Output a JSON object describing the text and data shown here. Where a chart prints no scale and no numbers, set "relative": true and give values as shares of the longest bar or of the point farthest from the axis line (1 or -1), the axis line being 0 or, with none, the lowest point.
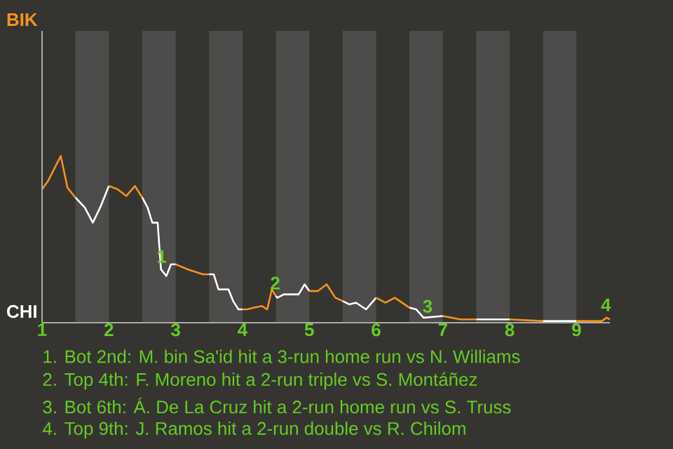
{
  "chart_data": {
    "type": "line",
    "relative": true,
    "series": [
      {
        "color": "#f7931e",
        "x": [
          1,
          1.09,
          1.28,
          1.38,
          1.5
        ],
        "values": [
          0.8,
          0.85,
          1,
          0.81,
          0.75
        ]
      },
      {
        "color": "#ffffff",
        "x": [
          1.5,
          1.64,
          1.76,
          1.88,
          2
        ],
        "values": [
          0.75,
          0.69,
          0.6,
          0.7,
          0.82
        ]
      },
      {
        "color": "#f7931e",
        "x": [
          2,
          2.13,
          2.26,
          2.39,
          2.5
        ],
        "values": [
          0.82,
          0.8,
          0.76,
          0.82,
          0.75
        ]
      },
      {
        "color": "#ffffff",
        "x": [
          2.5,
          2.58,
          2.65,
          2.73,
          2.78,
          2.86,
          2.93,
          3
        ],
        "values": [
          0.75,
          0.69,
          0.6,
          0.6,
          0.32,
          0.28,
          0.35,
          0.35
        ]
      },
      {
        "color": "#f7931e",
        "x": [
          3,
          3.18,
          3.41,
          3.5
        ],
        "values": [
          0.35,
          0.32,
          0.29,
          0.29
        ]
      },
      {
        "color": "#ffffff",
        "x": [
          3.5,
          3.57,
          3.64,
          3.72,
          3.79,
          3.86,
          3.94,
          4
        ],
        "values": [
          0.29,
          0.29,
          0.2,
          0.2,
          0.2,
          0.13,
          0.08,
          0.08
        ]
      },
      {
        "color": "#f7931e",
        "x": [
          4,
          4.07,
          4.17,
          4.29,
          4.37,
          4.44,
          4.5
        ],
        "values": [
          0.08,
          0.08,
          0.09,
          0.1,
          0.08,
          0.2,
          0.16
        ]
      },
      {
        "color": "#ffffff",
        "x": [
          4.5,
          4.52,
          4.62,
          4.84,
          4.93,
          5
        ],
        "values": [
          0.16,
          0.15,
          0.17,
          0.17,
          0.23,
          0.19
        ]
      },
      {
        "color": "#f7931e",
        "x": [
          5,
          5.13,
          5.26,
          5.39,
          5.5
        ],
        "values": [
          0.19,
          0.19,
          0.23,
          0.15,
          0.13
        ]
      },
      {
        "color": "#ffffff",
        "x": [
          5.5,
          5.6,
          5.7,
          5.85,
          6
        ],
        "values": [
          0.13,
          0.11,
          0.12,
          0.08,
          0.15
        ]
      },
      {
        "color": "#f7931e",
        "x": [
          6,
          6.14,
          6.28,
          6.5
        ],
        "values": [
          0.15,
          0.12,
          0.15,
          0.09
        ]
      },
      {
        "color": "#ffffff",
        "x": [
          6.5,
          6.6,
          6.71,
          7
        ],
        "values": [
          0.09,
          0.08,
          0.03,
          0.04
        ]
      },
      {
        "color": "#f7931e",
        "x": [
          7,
          7.26,
          7.5
        ],
        "values": [
          0.04,
          0.02,
          0.02
        ]
      },
      {
        "color": "#ffffff",
        "x": [
          7.5,
          7.69,
          8
        ],
        "values": [
          0.02,
          0.02,
          0.02
        ]
      },
      {
        "color": "#f7931e",
        "x": [
          8,
          8.5
        ],
        "values": [
          0.02,
          0.01
        ]
      },
      {
        "color": "#ffffff",
        "x": [
          8.5,
          8.69,
          9
        ],
        "values": [
          0.01,
          0.01,
          0.01
        ]
      },
      {
        "color": "#f7931e",
        "x": [
          9,
          9.38,
          9.45,
          9.5
        ],
        "values": [
          0.01,
          0.01,
          0.03,
          0.02
        ]
      }
    ],
    "xlim": [
      1,
      9.5
    ],
    "xticks": [
      1,
      2,
      3,
      4,
      5,
      6,
      7,
      8,
      9
    ],
    "bands": [
      {
        "axis": "x",
        "from": 1.5,
        "to": 2,
        "color": "#4d4c4a"
      },
      {
        "axis": "x",
        "from": 2.5,
        "to": 3,
        "color": "#4d4c4a"
      },
      {
        "axis": "x",
        "from": 3.5,
        "to": 4,
        "color": "#4d4c4a"
      },
      {
        "axis": "x",
        "from": 4.5,
        "to": 5,
        "color": "#4d4c4a"
      },
      {
        "axis": "x",
        "from": 5.5,
        "to": 6,
        "color": "#4d4c4a"
      },
      {
        "axis": "x",
        "from": 6.5,
        "to": 7,
        "color": "#4d4c4a"
      },
      {
        "axis": "x",
        "from": 7.5,
        "to": 8,
        "color": "#4d4c4a"
      },
      {
        "axis": "x",
        "from": 8.5,
        "to": 9,
        "color": "#4d4c4a"
      }
    ],
    "annotations": [
      "BIK",
      "CHI",
      {
        "text": "1",
        "x": 2.79,
        "y": 0.32
      },
      {
        "text": "2",
        "x": 4.49,
        "y": 0.16
      },
      {
        "text": "3",
        "x": 6.77,
        "y": 0.02
      },
      {
        "text": "4",
        "x": 9.44,
        "y": 0.03
      },
      "1. Bot 2nd: M. bin Sa'id hit a 3-run home run vs N. Williams",
      "2. Top 4th: F. Moreno hit a 2-run triple vs S. Montáñez",
      "3. Bot 6th: Á. De La Cruz hit a 2-run home run vs S. Truss",
      "4. Top 9th: J. Ramos hit a 2-run double vs R. Chilom"
    ]
  }
}
